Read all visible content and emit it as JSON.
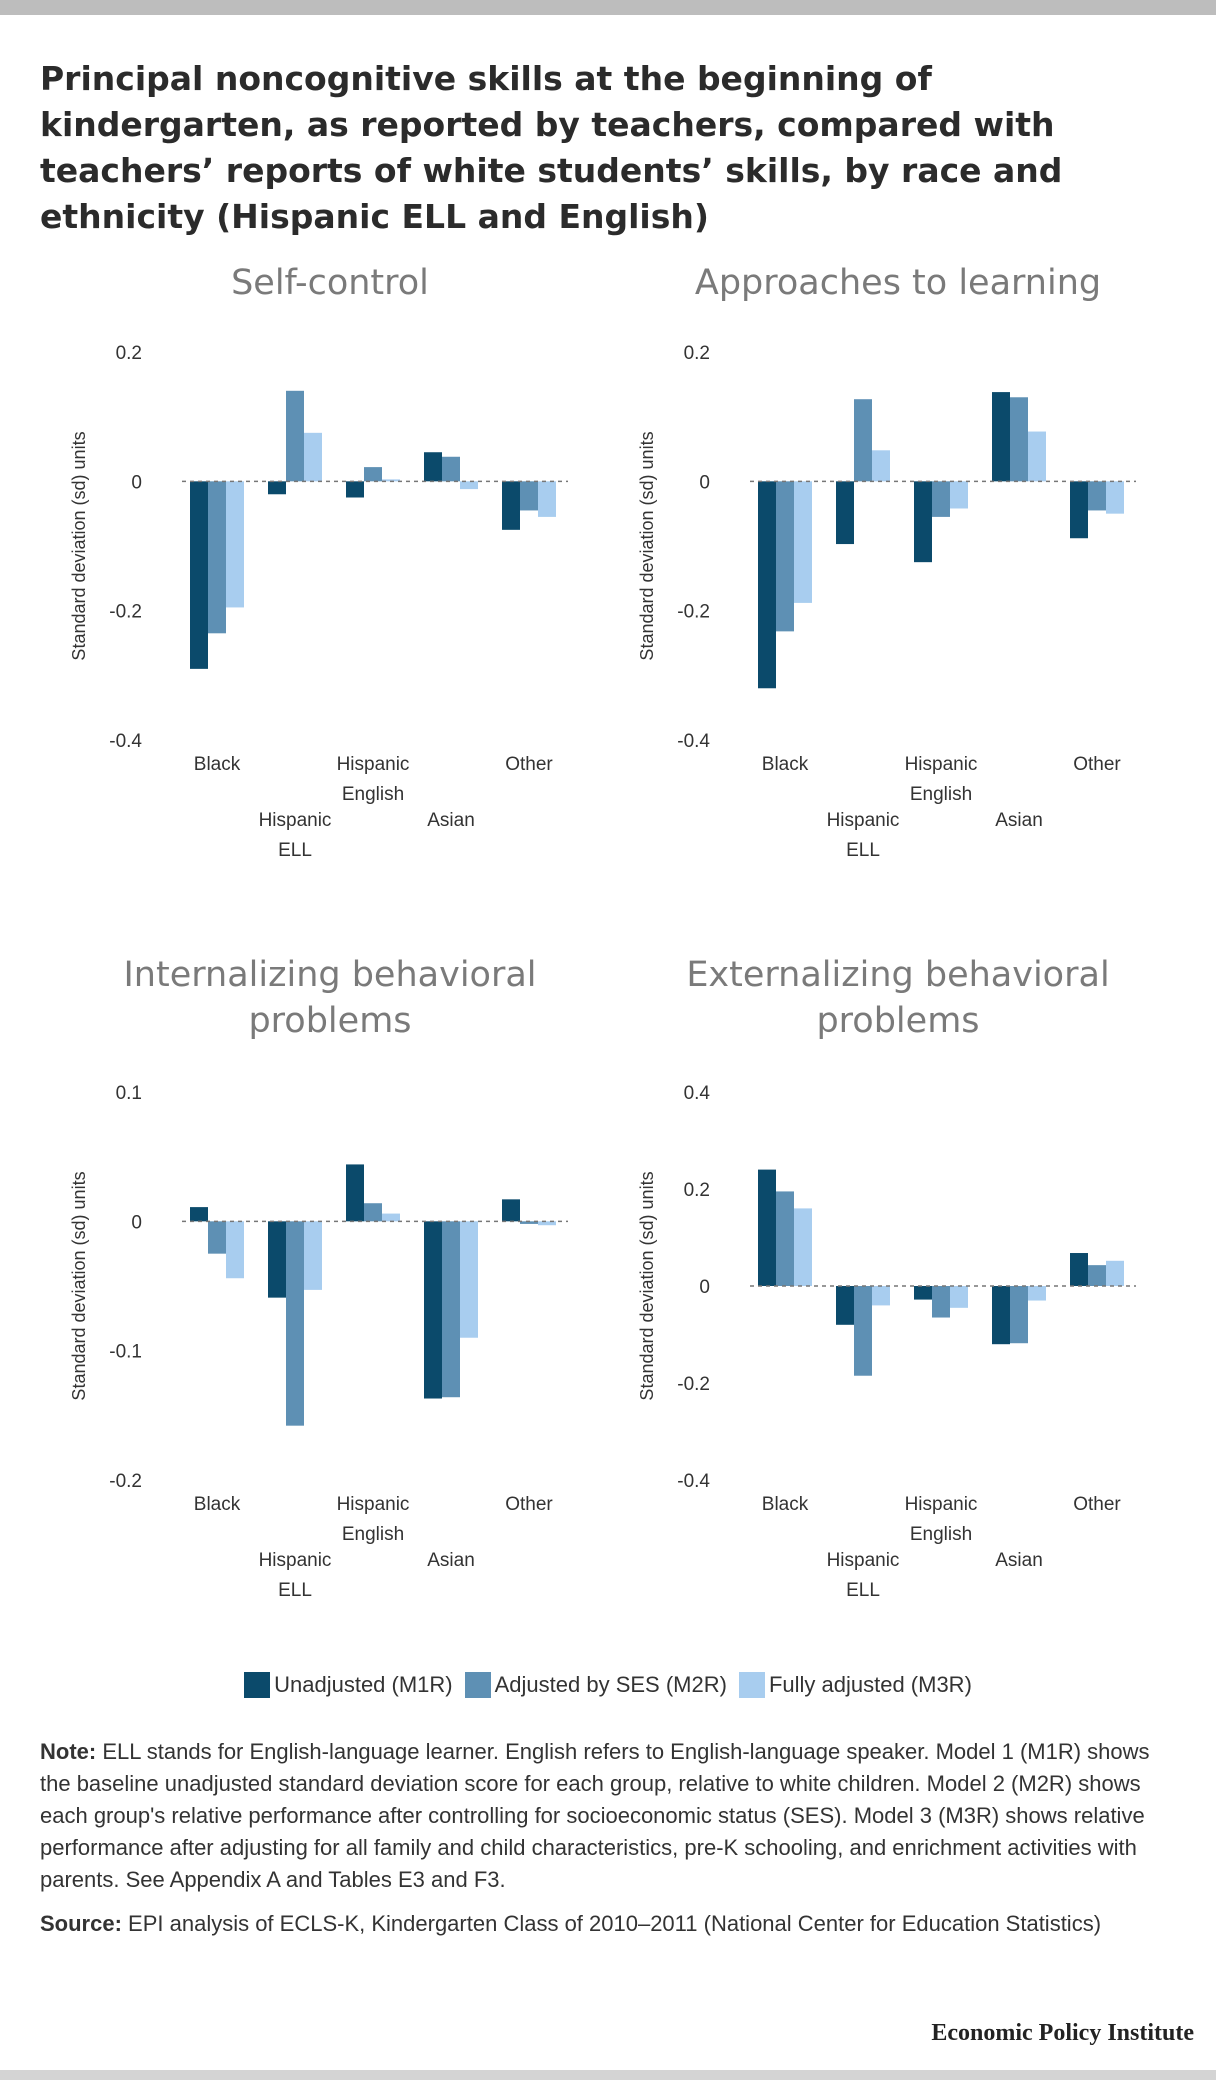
{
  "title": "Principal noncognitive skills at the beginning of kindergarten, as reported by teachers, compared with teachers’ reports of white students’ skills, by race and ethnicity (Hispanic ELL and English)",
  "colors": {
    "m1r": "#0b4a6b",
    "m2r": "#5e90b4",
    "m3r": "#a8cdef",
    "zero_line": "#777777"
  },
  "chart_data": [
    {
      "type": "bar",
      "title": "Self-control",
      "ylabel": "Standard deviation (sd) units",
      "ylim": [
        -0.4,
        0.2
      ],
      "yticks": [
        0.2,
        0,
        -0.2,
        -0.4
      ],
      "ytick_labels": [
        "0.2",
        "0",
        "-0.2",
        "-0.4"
      ],
      "categories": [
        "Black",
        "Hispanic ELL",
        "Hispanic English",
        "Asian",
        "Other"
      ],
      "category_lines": [
        [
          "Black"
        ],
        [
          "Hispanic",
          "ELL"
        ],
        [
          "Hispanic",
          "English"
        ],
        [
          "Asian"
        ],
        [
          "Other"
        ]
      ],
      "series": [
        {
          "name": "Unadjusted (M1R)",
          "values": [
            -0.29,
            -0.02,
            -0.025,
            0.045,
            -0.075
          ]
        },
        {
          "name": "Adjusted by SES (M2R)",
          "values": [
            -0.235,
            0.14,
            0.022,
            0.038,
            -0.045
          ]
        },
        {
          "name": "Fully adjusted (M3R)",
          "values": [
            -0.195,
            0.075,
            0.003,
            -0.012,
            -0.055
          ]
        }
      ]
    },
    {
      "type": "bar",
      "title": "Approaches to learning",
      "ylabel": "Standard deviation (sd) units",
      "ylim": [
        -0.4,
        0.2
      ],
      "yticks": [
        0.2,
        0,
        -0.2,
        -0.4
      ],
      "ytick_labels": [
        "0.2",
        "0",
        "-0.2",
        "-0.4"
      ],
      "categories": [
        "Black",
        "Hispanic ELL",
        "Hispanic English",
        "Asian",
        "Other"
      ],
      "category_lines": [
        [
          "Black"
        ],
        [
          "Hispanic",
          "ELL"
        ],
        [
          "Hispanic",
          "English"
        ],
        [
          "Asian"
        ],
        [
          "Other"
        ]
      ],
      "series": [
        {
          "name": "Unadjusted (M1R)",
          "values": [
            -0.32,
            -0.097,
            -0.125,
            0.138,
            -0.088
          ]
        },
        {
          "name": "Adjusted by SES (M2R)",
          "values": [
            -0.232,
            0.127,
            -0.055,
            0.13,
            -0.045
          ]
        },
        {
          "name": "Fully adjusted (M3R)",
          "values": [
            -0.188,
            0.048,
            -0.042,
            0.077,
            -0.05
          ]
        }
      ]
    },
    {
      "type": "bar",
      "title": "Internalizing behavioral problems",
      "ylabel": "Standard deviation (sd) units",
      "ylim": [
        -0.2,
        0.1
      ],
      "yticks": [
        0.1,
        0,
        -0.1,
        -0.2
      ],
      "ytick_labels": [
        "0.1",
        "0",
        "-0.1",
        "-0.2"
      ],
      "categories": [
        "Black",
        "Hispanic ELL",
        "Hispanic English",
        "Asian",
        "Other"
      ],
      "category_lines": [
        [
          "Black"
        ],
        [
          "Hispanic",
          "ELL"
        ],
        [
          "Hispanic",
          "English"
        ],
        [
          "Asian"
        ],
        [
          "Other"
        ]
      ],
      "series": [
        {
          "name": "Unadjusted (M1R)",
          "values": [
            0.011,
            -0.059,
            0.044,
            -0.137,
            0.017
          ]
        },
        {
          "name": "Adjusted by SES (M2R)",
          "values": [
            -0.025,
            -0.158,
            0.014,
            -0.136,
            -0.002
          ]
        },
        {
          "name": "Fully adjusted (M3R)",
          "values": [
            -0.044,
            -0.053,
            0.006,
            -0.09,
            -0.003
          ]
        }
      ]
    },
    {
      "type": "bar",
      "title": "Externalizing behavioral problems",
      "ylabel": "Standard deviation (sd) units",
      "ylim": [
        -0.4,
        0.4
      ],
      "yticks": [
        0.4,
        0.2,
        0,
        -0.2,
        -0.4
      ],
      "ytick_labels": [
        "0.4",
        "0.2",
        "0",
        "-0.2",
        "-0.4"
      ],
      "categories": [
        "Black",
        "Hispanic ELL",
        "Hispanic English",
        "Asian",
        "Other"
      ],
      "category_lines": [
        [
          "Black"
        ],
        [
          "Hispanic",
          "ELL"
        ],
        [
          "Hispanic",
          "English"
        ],
        [
          "Asian"
        ],
        [
          "Other"
        ]
      ],
      "series": [
        {
          "name": "Unadjusted (M1R)",
          "values": [
            0.24,
            -0.08,
            -0.028,
            -0.12,
            0.068
          ]
        },
        {
          "name": "Adjusted by SES (M2R)",
          "values": [
            0.195,
            -0.185,
            -0.065,
            -0.118,
            0.043
          ]
        },
        {
          "name": "Fully adjusted (M3R)",
          "values": [
            0.16,
            -0.04,
            -0.045,
            -0.03,
            0.052
          ]
        }
      ]
    }
  ],
  "legend": {
    "m1r": "Unadjusted (M1R)",
    "m2r": "Adjusted by SES (M2R)",
    "m3r": "Fully adjusted (M3R)"
  },
  "note": {
    "label": "Note:",
    "text": " ELL stands for English-language learner. English refers to English-language speaker. Model 1 (M1R) shows the baseline unadjusted standard deviation score for each group, relative to white children. Model 2 (M2R) shows each group's relative performance after controlling for socioeconomic status (SES). Model 3 (M3R) shows relative performance after adjusting for all family and child characteristics, pre-K schooling, and enrichment activities with parents. See Appendix A and Tables E3 and F3."
  },
  "source": {
    "label": "Source:",
    "text": " EPI analysis of ECLS-K, Kindergarten Class of 2010–2011 (National Center for Education Statistics)"
  },
  "brand": "Economic Policy Institute"
}
